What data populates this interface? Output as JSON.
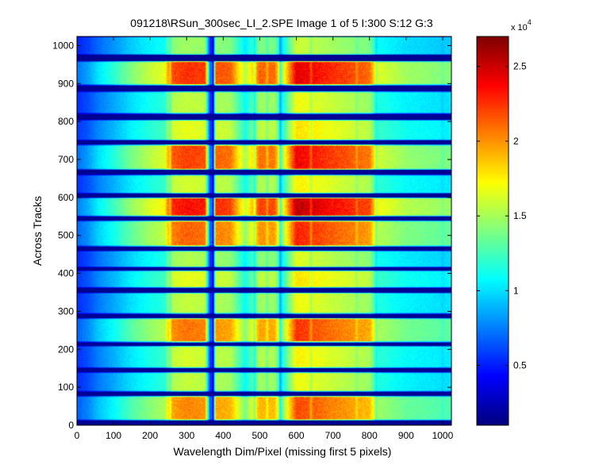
{
  "chart_data": {
    "type": "heatmap",
    "title": "091218\\RSun_300sec_LI_2.SPE  Image 1 of 5  I:300  S:12  G:3",
    "xlabel": "Wavelength Dim/Pixel (missing first 5 pixels)",
    "ylabel": "Across Tracks",
    "xlim": [
      0,
      1024
    ],
    "ylim": [
      0,
      1024
    ],
    "x_ticks": [
      0,
      100,
      200,
      300,
      400,
      500,
      600,
      700,
      800,
      900,
      1000
    ],
    "y_ticks": [
      0,
      100,
      200,
      300,
      400,
      500,
      600,
      700,
      800,
      900,
      1000
    ],
    "colorbar": {
      "colormap": "jet",
      "range": [
        1000,
        27000
      ],
      "multiplier_label": "x 10",
      "multiplier_exponent": "4",
      "ticks": [
        5000,
        10000,
        15000,
        20000,
        25000
      ],
      "tick_labels": [
        "0.5",
        "1",
        "1.5",
        "2",
        "2.5"
      ]
    },
    "tracks": [
      {
        "y_range": [
          12,
          78
        ],
        "peak": 22000
      },
      {
        "y_range": [
          88,
          140
        ],
        "peak": 17000
      },
      {
        "y_range": [
          150,
          210
        ],
        "peak": 17500
      },
      {
        "y_range": [
          218,
          283
        ],
        "peak": 22500
      },
      {
        "y_range": [
          293,
          350
        ],
        "peak": 17000
      },
      {
        "y_range": [
          362,
          408
        ],
        "peak": 18000
      },
      {
        "y_range": [
          416,
          460
        ],
        "peak": 16500
      },
      {
        "y_range": [
          470,
          540
        ],
        "peak": 23000
      },
      {
        "y_range": [
          550,
          600
        ],
        "peak": 25500
      },
      {
        "y_range": [
          610,
          660
        ],
        "peak": 17500
      },
      {
        "y_range": [
          672,
          740
        ],
        "peak": 24000
      },
      {
        "y_range": [
          750,
          805
        ],
        "peak": 18000
      },
      {
        "y_range": [
          820,
          880
        ],
        "peak": 17000
      },
      {
        "y_range": [
          895,
          960
        ],
        "peak": 24500
      },
      {
        "y_range": [
          975,
          1024
        ],
        "peak": 16000
      }
    ],
    "spectrum_profile": {
      "x": [
        0,
        30,
        60,
        100,
        150,
        200,
        240,
        255,
        300,
        350,
        365,
        380,
        420,
        460,
        500,
        540,
        560,
        600,
        640,
        700,
        760,
        800,
        820,
        900,
        1000,
        1024
      ],
      "relative_intensity": [
        0.25,
        0.3,
        0.38,
        0.45,
        0.55,
        0.62,
        0.66,
        0.88,
        0.92,
        0.9,
        0.2,
        0.88,
        0.86,
        0.6,
        0.86,
        0.85,
        0.6,
        1.0,
        0.97,
        0.92,
        0.88,
        0.85,
        0.65,
        0.58,
        0.55,
        0.55
      ]
    },
    "absorption_lines": [
      {
        "x": 255,
        "depth": 0.15
      },
      {
        "x": 372,
        "depth": 0.8
      },
      {
        "x": 486,
        "depth": 0.2
      },
      {
        "x": 520,
        "depth": 0.1
      },
      {
        "x": 556,
        "depth": 0.3
      },
      {
        "x": 640,
        "depth": 0.1
      },
      {
        "x": 765,
        "depth": 0.08
      },
      {
        "x": 818,
        "depth": 0.12
      },
      {
        "x": 1000,
        "depth": 0.05
      }
    ],
    "background_value": 1500
  }
}
